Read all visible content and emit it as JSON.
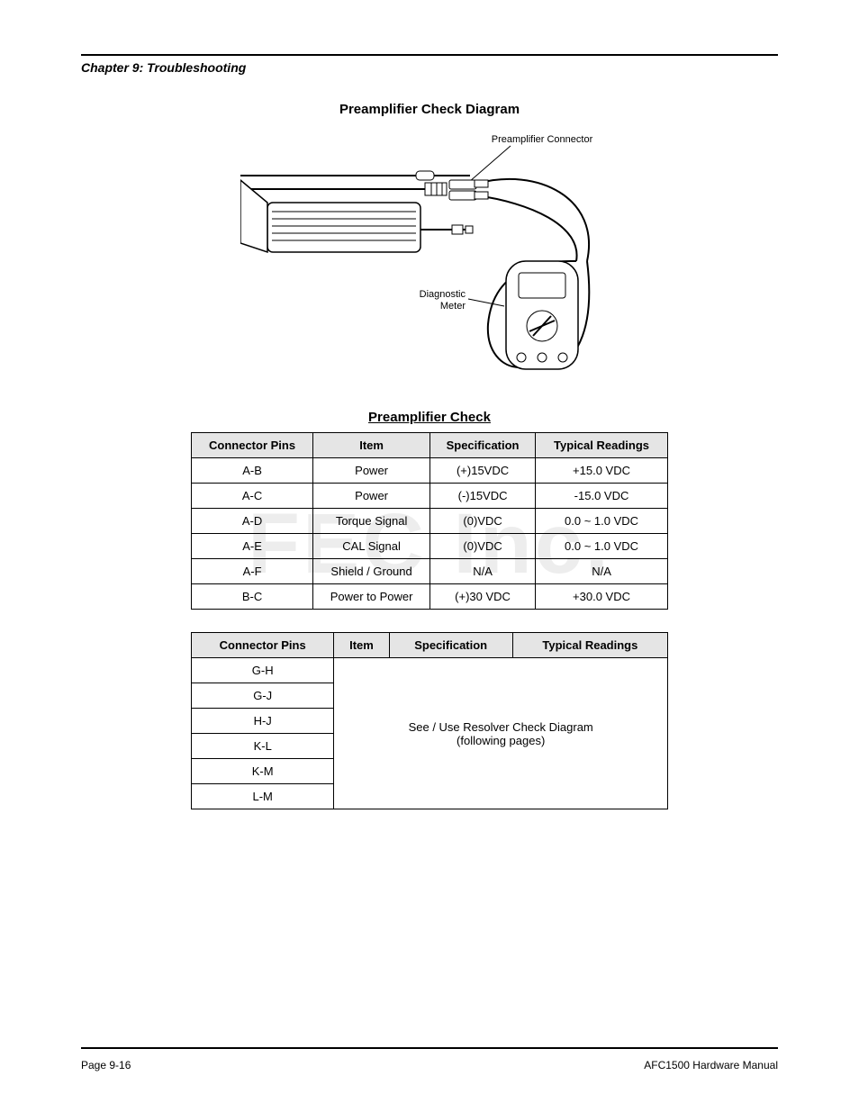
{
  "header": {
    "left": "Chapter 9: Troubleshooting"
  },
  "section_heading": "Preamplifier Check Diagram",
  "diagram": {
    "label_preamp": "Preamplifier Connector",
    "label_meter": "Diagnostic\nMeter",
    "colors": {
      "stroke": "#000000",
      "bg": "#ffffff"
    }
  },
  "table1": {
    "title": "Preamplifier Check",
    "headers": [
      "Connector Pins",
      "Item",
      "Specification",
      "Typical Readings"
    ],
    "rows": [
      [
        "A-B",
        "Power",
        "(+)15VDC",
        "+15.0 VDC"
      ],
      [
        "A-C",
        "Power",
        "(-)15VDC",
        "-15.0 VDC"
      ],
      [
        "A-D",
        "Torque Signal",
        "(0)VDC",
        "0.0 ~ 1.0 VDC"
      ],
      [
        "A-E",
        "CAL Signal",
        "(0)VDC",
        "0.0 ~ 1.0 VDC"
      ],
      [
        "A-F",
        "Shield / Ground",
        "N/A",
        "N/A"
      ],
      [
        "B-C",
        "Power to Power",
        "(+)30 VDC",
        "+30.0 VDC"
      ]
    ]
  },
  "table2": {
    "headers": [
      "Connector Pins",
      "Item",
      "Specification",
      "Typical Readings"
    ],
    "row_labels": [
      "G-H",
      "G-J",
      "H-J",
      "K-L",
      "K-M",
      "L-M"
    ],
    "merged_text": "See / Use Resolver Check Diagram\n(following pages)"
  },
  "watermark": "FEC Inc.",
  "footer": {
    "left": "Page 9-16",
    "right": "AFC1500 Hardware Manual"
  }
}
